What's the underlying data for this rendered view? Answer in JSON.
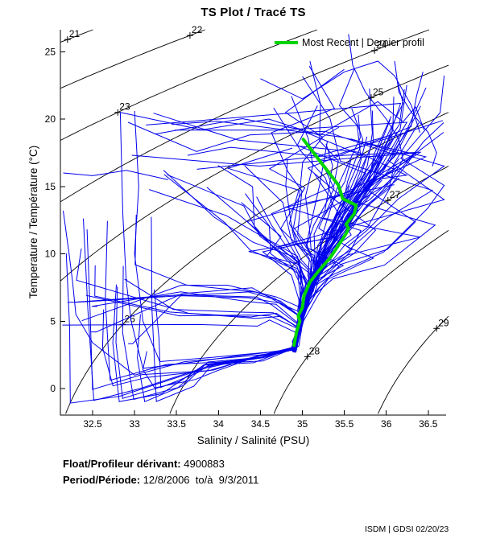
{
  "info": {
    "float_label": "Float/Profileur dérivant:",
    "float_value": "4900883",
    "period_label": "Period/Période:",
    "period_value": "12/8/2006  to/à  9/3/2011"
  },
  "footer": "ISDM | GDSI 02/20/23",
  "chart_data": {
    "type": "line",
    "title": "TS Plot / Tracé TS",
    "xlabel": "Salinity / Salinité (PSU)",
    "ylabel": "Temperature / Température (°C)",
    "xlim": [
      32.116,
      36.713
    ],
    "ylim": [
      -1.97,
      26.63
    ],
    "xticks": {
      "values": [
        32.5,
        33,
        33.5,
        34,
        34.5,
        35,
        35.5,
        36,
        36.5
      ],
      "labels": [
        "32.5",
        "33",
        "33.5",
        "34",
        "34.5",
        "35",
        "35.5",
        "36",
        "36.5"
      ]
    },
    "yticks": {
      "values": [
        0,
        5,
        10,
        15,
        20,
        25
      ],
      "labels": [
        "0",
        "5",
        "10",
        "15",
        "20",
        "25"
      ]
    },
    "grid": false,
    "legend_position": "top-inside",
    "isopycnals": {
      "color": "#000000",
      "values": [
        21,
        22,
        23,
        24,
        25,
        26,
        27,
        28,
        29
      ],
      "label_anchors": [
        {
          "value": 21,
          "s": 32.2
        },
        {
          "value": 22,
          "s": 33.66
        },
        {
          "value": 23,
          "s": 32.8
        },
        {
          "value": 24,
          "s": 35.86
        },
        {
          "value": 25,
          "s": 35.82
        },
        {
          "value": 26,
          "s": 32.86
        },
        {
          "value": 27,
          "s": 36.02
        },
        {
          "value": 28,
          "s": 35.06
        },
        {
          "value": 29,
          "s": 36.6
        }
      ]
    },
    "most_recent": {
      "name": "Most Recent | Dernier profil",
      "color": "#00d400",
      "points": [
        [
          35.01,
          18.5
        ],
        [
          35.43,
          15.1
        ],
        [
          35.48,
          14.1
        ],
        [
          35.64,
          13.6
        ],
        [
          35.62,
          13.0
        ],
        [
          35.52,
          12.2
        ],
        [
          35.55,
          11.9
        ],
        [
          35.52,
          11.5
        ],
        [
          35.48,
          11.1
        ],
        [
          35.33,
          9.7
        ],
        [
          35.19,
          8.7
        ],
        [
          35.09,
          7.9
        ],
        [
          35.02,
          6.9
        ],
        [
          35.0,
          6.0
        ],
        [
          34.95,
          5.4
        ],
        [
          34.97,
          5.0
        ],
        [
          34.93,
          4.2
        ],
        [
          34.91,
          3.5
        ],
        [
          34.9,
          3.2
        ]
      ]
    },
    "profile_cloud": {
      "color": "#0000ee",
      "seed": 42,
      "warm": 60,
      "cold": 24,
      "zigzag": 9,
      "deep_anchor": [
        34.9,
        2.8
      ],
      "spine": [
        [
          2.6,
          34.9
        ],
        [
          4,
          34.94
        ],
        [
          6,
          35.01
        ],
        [
          8,
          35.12
        ],
        [
          10,
          35.27
        ],
        [
          12,
          35.46
        ],
        [
          14,
          35.67
        ],
        [
          16,
          35.92
        ],
        [
          18,
          36.14
        ],
        [
          20,
          36.32
        ],
        [
          22,
          36.42
        ],
        [
          24,
          36.5
        ]
      ],
      "features": [
        [
          [
            32.83,
            20.5
          ],
          [
            32.86,
            13.0
          ],
          [
            32.9,
            8.0
          ],
          [
            32.96,
            5.0
          ],
          [
            33.1,
            1.5
          ],
          [
            33.5,
            1.8
          ],
          [
            34.2,
            2.4
          ],
          [
            34.9,
            2.9
          ]
        ],
        [
          [
            32.83,
            20.5
          ],
          [
            33.8,
            19.2
          ],
          [
            34.6,
            20.0
          ],
          [
            35.2,
            18.8
          ],
          [
            35.9,
            21.3
          ],
          [
            36.2,
            19.8
          ],
          [
            36.35,
            20.9
          ],
          [
            36.45,
            19.2
          ]
        ],
        [
          [
            34.5,
            23.0
          ],
          [
            35.0,
            21.5
          ],
          [
            35.5,
            23.5
          ],
          [
            35.9,
            24.3
          ],
          [
            36.1,
            23.2
          ],
          [
            36.3,
            21.0
          ],
          [
            36.4,
            19.0
          ]
        ],
        [
          [
            32.15,
            13.2
          ],
          [
            32.22,
            10.0
          ],
          [
            32.26,
            8.0
          ],
          [
            32.3,
            5.5
          ],
          [
            32.5,
            3.4
          ],
          [
            33.0,
            1.0
          ],
          [
            33.6,
            2.0
          ],
          [
            34.5,
            2.5
          ],
          [
            34.88,
            2.85
          ]
        ],
        [
          [
            33.0,
            20.6
          ],
          [
            33.05,
            15.0
          ],
          [
            33.0,
            10.0
          ],
          [
            33.1,
            5.0
          ],
          [
            33.3,
            2.0
          ],
          [
            33.9,
            2.3
          ],
          [
            34.6,
            2.7
          ],
          [
            34.9,
            2.95
          ]
        ],
        [
          [
            35.55,
            26.3
          ],
          [
            35.6,
            24.0
          ],
          [
            35.75,
            22.0
          ],
          [
            36.0,
            20.0
          ],
          [
            36.15,
            18.5
          ],
          [
            36.2,
            17.0
          ],
          [
            36.05,
            15.5
          ],
          [
            35.8,
            14.0
          ],
          [
            35.66,
            13.5
          ]
        ],
        [
          [
            36.1,
            24.3
          ],
          [
            36.15,
            22.0
          ],
          [
            36.3,
            20.5
          ],
          [
            36.5,
            19.0
          ],
          [
            36.6,
            17.5
          ],
          [
            36.55,
            16.5
          ]
        ],
        [
          [
            32.15,
            16.0
          ],
          [
            32.5,
            15.8
          ],
          [
            32.9,
            16.2
          ],
          [
            33.4,
            15.5
          ]
        ]
      ]
    }
  }
}
